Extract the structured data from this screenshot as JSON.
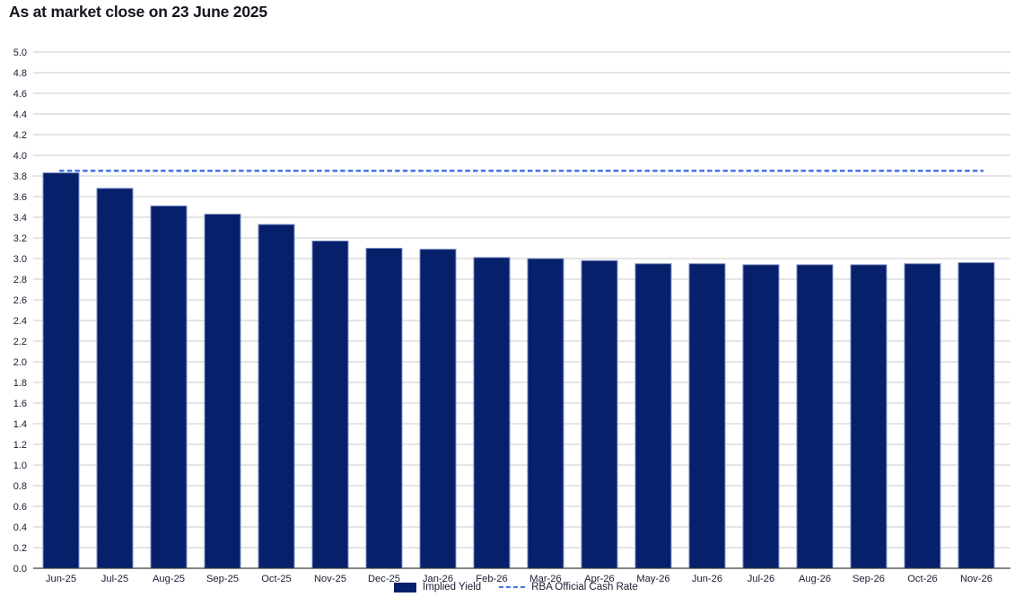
{
  "title": "As at market close on 23 June 2025",
  "legend": {
    "implied_yield": "Implied Yield",
    "cash_rate": "RBA Official Cash Rate"
  },
  "colors": {
    "bar_fill": "#06206b",
    "bar_border": "#7e90c4",
    "cash_rate_line": "#4472e4",
    "gridline": "#cbcbce",
    "axis_line": "#3d3d3d",
    "title_text": "#15151f",
    "tick_text": "#1b1b33"
  },
  "chart_data": {
    "type": "bar",
    "title": "As at market close on 23 June 2025",
    "xlabel": "",
    "ylabel": "",
    "categories": [
      "Jun-25",
      "Jul-25",
      "Aug-25",
      "Sep-25",
      "Oct-25",
      "Nov-25",
      "Dec-25",
      "Jan-26",
      "Feb-26",
      "Mar-26",
      "Apr-26",
      "May-26",
      "Jun-26",
      "Jul-26",
      "Aug-26",
      "Sep-26",
      "Oct-26",
      "Nov-26"
    ],
    "series": [
      {
        "name": "Implied Yield",
        "type": "bar",
        "values": [
          3.83,
          3.68,
          3.51,
          3.43,
          3.33,
          3.17,
          3.1,
          3.09,
          3.01,
          3.0,
          2.98,
          2.95,
          2.95,
          2.94,
          2.94,
          2.94,
          2.95,
          2.96
        ]
      },
      {
        "name": "RBA Official Cash Rate",
        "type": "dashed-horizontal-line",
        "value": 3.85
      }
    ],
    "ylim": [
      0.0,
      5.0
    ],
    "y_tick_step": 0.2,
    "y_tick_labels": [
      "5.0",
      "4.8",
      "4.6",
      "4.4",
      "4.2",
      "4.0",
      "3.8",
      "3.6",
      "3.4",
      "3.2",
      "3.0",
      "2.8",
      "2.6",
      "2.4",
      "2.2",
      "2.0",
      "1.8",
      "1.6",
      "1.4",
      "1.2",
      "1.0",
      "0.8",
      "0.6",
      "0.4",
      "0.2",
      "0.0"
    ],
    "grid": "horizontal",
    "legend_position": "bottom-center"
  }
}
